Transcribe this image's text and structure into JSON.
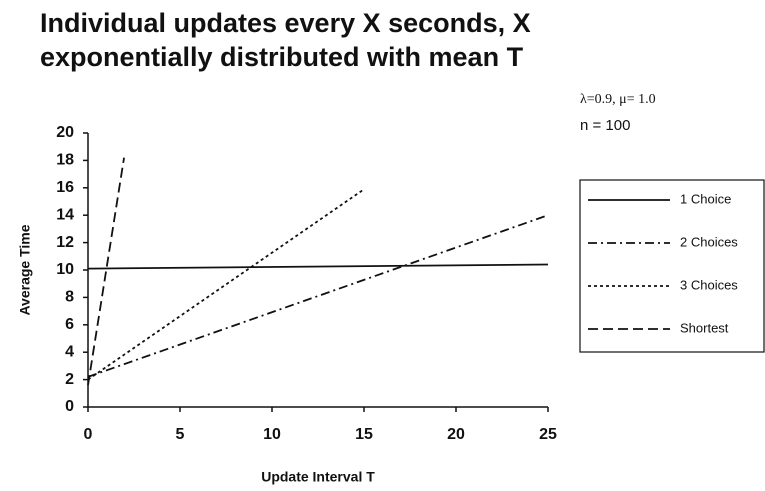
{
  "chart_data": {
    "type": "line",
    "title": "Individual updates every X seconds, X exponentially distributed with mean T",
    "annotations": [
      "λ=0.9, μ= 1.0",
      "n = 100"
    ],
    "x_label": "Update Interval T",
    "y_label": "Average Time",
    "xlim": [
      0,
      25
    ],
    "xticks": [
      0,
      5,
      10,
      15,
      20,
      25
    ],
    "ylim": [
      0,
      20
    ],
    "yticks": [
      0,
      2,
      4,
      6,
      8,
      10,
      12,
      14,
      16,
      18,
      20
    ],
    "series": [
      {
        "name": "1 Choice",
        "color": "#111111",
        "style": "solid",
        "x": [
          0,
          25
        ],
        "values": [
          10.1,
          10.4
        ]
      },
      {
        "name": "2 Choices",
        "color": "#111111",
        "style": "dashdot",
        "x": [
          0,
          25
        ],
        "values": [
          2.2,
          14.0
        ]
      },
      {
        "name": "3 Choices",
        "color": "#111111",
        "style": "dotted",
        "x": [
          0,
          14.9
        ],
        "values": [
          2.0,
          15.8
        ]
      },
      {
        "name": "Shortest",
        "color": "#111111",
        "style": "dashed",
        "x": [
          0,
          1.96
        ],
        "values": [
          1.6,
          18.2
        ]
      }
    ]
  }
}
